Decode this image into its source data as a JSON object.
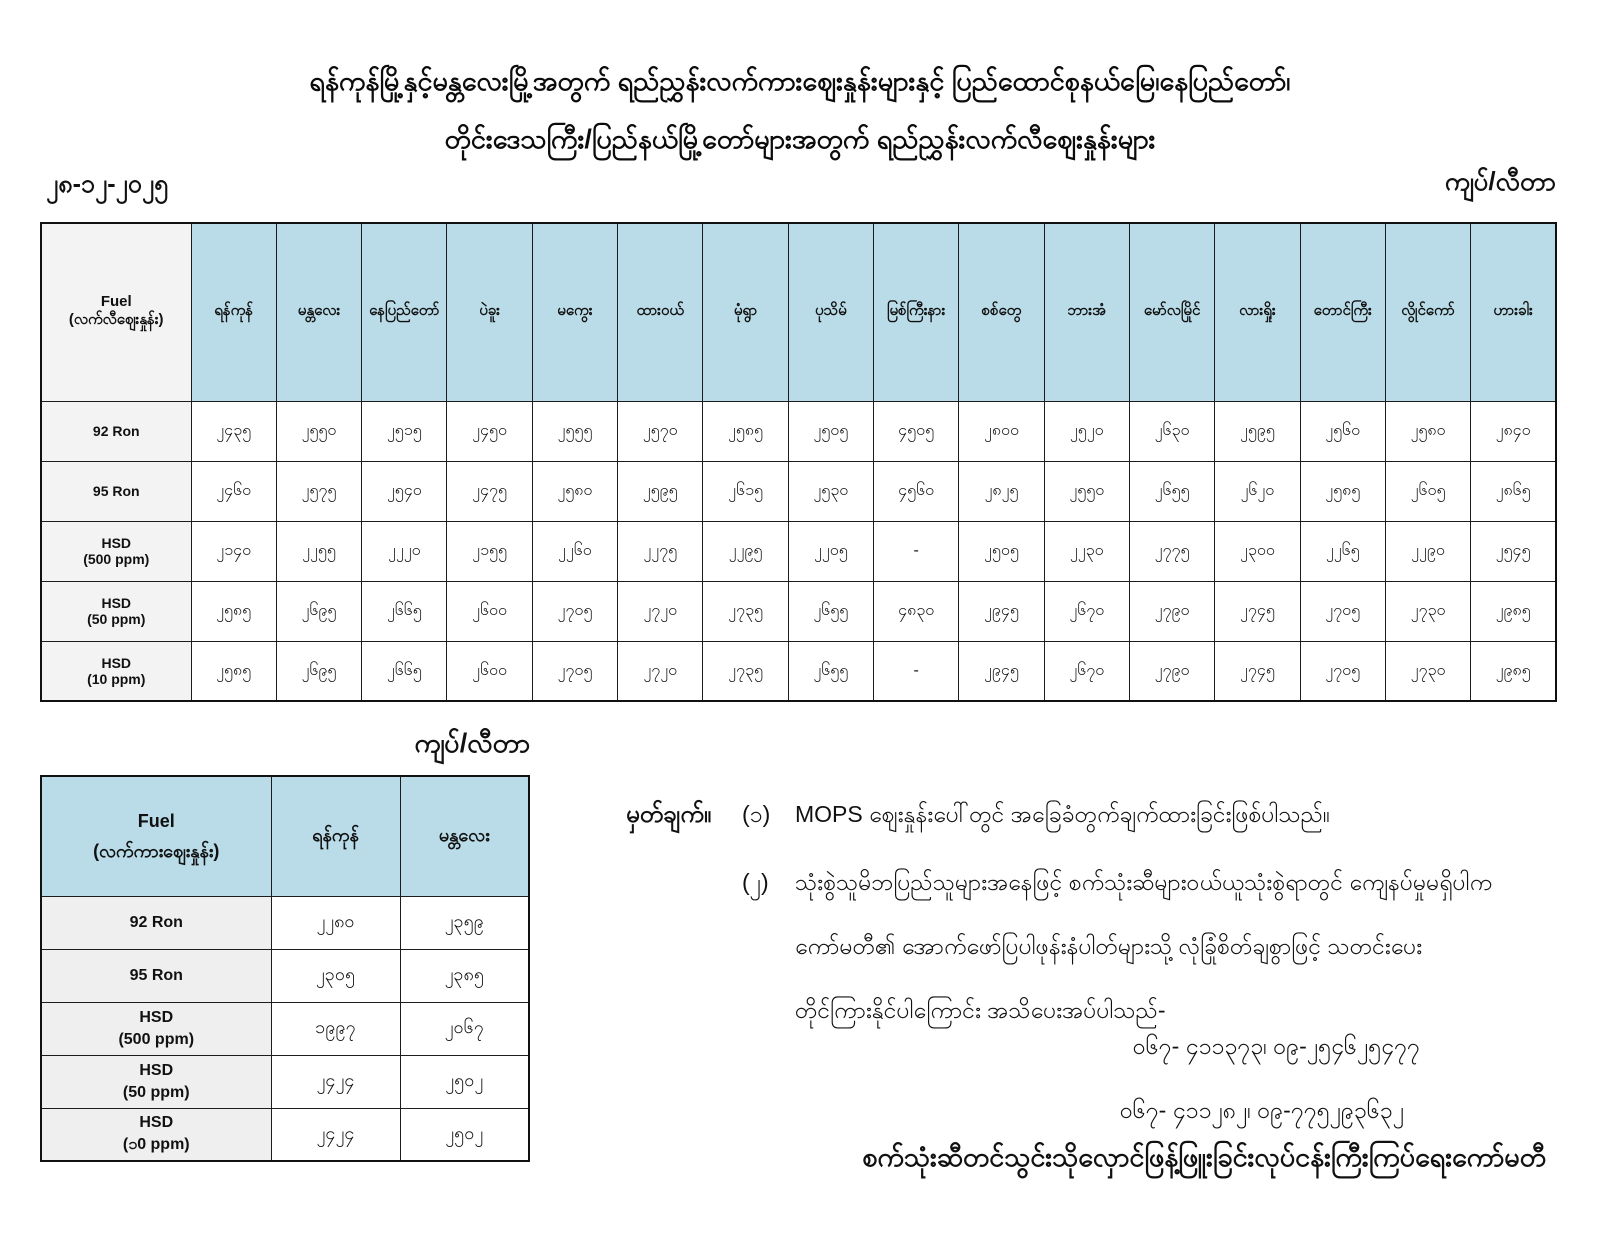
{
  "title": {
    "line1": "ရန်ကုန်မြို့နှင့်မန္တလေးမြို့အတွက် ရည်ညွှန်းလက်ကားဈေးနှုန်းများနှင့် ပြည်ထောင်စုနယ်မြေ၊နေပြည်တော်၊",
    "line2": "တိုင်းဒေသကြီး/ပြည်နယ်မြို့တော်များအတွက် ရည်ညွှန်းလက်လီဈေးနှုန်းများ"
  },
  "date": "၂၈-၁၂-၂၀၂၅",
  "unit_label": "ကျပ်/လီတာ",
  "colors": {
    "header_blue": "#b9dce8",
    "label_gray": "#f3f3f3",
    "border": "#1c1c1c"
  },
  "main_table": {
    "fuel_header": {
      "line1": "Fuel",
      "line2": "(လက်လီဈေးနှုန်း)"
    },
    "cities": [
      "ရန်ကုန်",
      "မန္တလေး",
      "နေပြည်တော်",
      "ပဲခူး",
      "မကွေး",
      "ထားဝယ်",
      "မုံရွာ",
      "ပုသိမ်",
      "မြစ်ကြီးနား",
      "စစ်တွေ",
      "ဘားအံ",
      "မော်လမြိုင်",
      "လားရှိုး",
      "တောင်ကြီး",
      "လွိုင်ကော်",
      "ဟားခါး"
    ],
    "rows": [
      {
        "label": "92 Ron",
        "label2": "",
        "values": [
          "၂၄၃၅",
          "၂၅၅၀",
          "၂၅၁၅",
          "၂၄၅၀",
          "၂၅၅၅",
          "၂၅၇၀",
          "၂၅၈၅",
          "၂၅၀၅",
          "၄၅၀၅",
          "၂၈၀၀",
          "၂၅၂၀",
          "၂၆၃၀",
          "၂၅၉၅",
          "၂၅၆၀",
          "၂၅၈၀",
          "၂၈၄၀"
        ]
      },
      {
        "label": "95 Ron",
        "label2": "",
        "values": [
          "၂၄၆၀",
          "၂၅၇၅",
          "၂၅၄၀",
          "၂၄၇၅",
          "၂၅၈၀",
          "၂၅၉၅",
          "၂၆၁၅",
          "၂၅၃၀",
          "၄၅၆၀",
          "၂၈၂၅",
          "၂၅၅၀",
          "၂၆၅၅",
          "၂၆၂၀",
          "၂၅၈၅",
          "၂၆၀၅",
          "၂၈၆၅"
        ]
      },
      {
        "label": "HSD",
        "label2": "(500 ppm)",
        "values": [
          "၂၁၄၀",
          "၂၂၅၅",
          "၂၂၂၀",
          "၂၁၅၅",
          "၂၂၆၀",
          "၂၂၇၅",
          "၂၂၉၅",
          "၂၂၀၅",
          "-",
          "၂၅၀၅",
          "၂၂၃၀",
          "၂၇၇၅",
          "၂၃၀၀",
          "၂၂၆၅",
          "၂၂၉၀",
          "၂၅၄၅"
        ]
      },
      {
        "label": "HSD",
        "label2": "(50 ppm)",
        "values": [
          "၂၅၈၅",
          "၂၆၉၅",
          "၂၆၆၅",
          "၂၆၀၀",
          "၂၇၀၅",
          "၂၇၂၀",
          "၂၇၃၅",
          "၂၆၅၅",
          "၄၈၃၀",
          "၂၉၄၅",
          "၂၆၇၀",
          "၂၇၉၀",
          "၂၇၄၅",
          "၂၇၀၅",
          "၂၇၃၀",
          "၂၉၈၅"
        ]
      },
      {
        "label": "HSD",
        "label2": "(10 ppm)",
        "values": [
          "၂၅၈၅",
          "၂၆၉၅",
          "၂၆၆၅",
          "၂၆၀၀",
          "၂၇၀၅",
          "၂၇၂၀",
          "၂၇၃၅",
          "၂၆၅၅",
          "-",
          "၂၉၄၅",
          "၂၆၇၀",
          "၂၇၉၀",
          "၂၇၄၅",
          "၂၇၀၅",
          "၂၇၃၀",
          "၂၉၈၅"
        ]
      }
    ]
  },
  "small_table": {
    "unit_label": "ကျပ်/လီတာ",
    "fuel_header": {
      "line1": "Fuel",
      "line2": "(လက်ကားဈေးနှုန်း)"
    },
    "cities": [
      "ရန်ကုန်",
      "မန္တလေး"
    ],
    "rows": [
      {
        "label": "92 Ron",
        "label2": "",
        "values": [
          "၂၂၈၀",
          "၂၃၅၉"
        ]
      },
      {
        "label": "95 Ron",
        "label2": "",
        "values": [
          "၂၃၀၅",
          "၂၃၈၅"
        ]
      },
      {
        "label": "HSD",
        "label2": "(500 ppm)",
        "values": [
          "၁၉၉၇",
          "၂၀၆၇"
        ]
      },
      {
        "label": "HSD",
        "label2": "(50 ppm)",
        "values": [
          "၂၄၂၄",
          "၂၅၀၂"
        ]
      },
      {
        "label": "HSD",
        "label2": "(၁0 ppm)",
        "values": [
          "၂၄၂၄",
          "၂၅၀၂"
        ]
      }
    ]
  },
  "notes": {
    "heading": "မှတ်ချက်။",
    "item1_num": "(၁)",
    "item1_text": "MOPS ဈေးနှုန်းပေါ်တွင် အခြေခံတွက်ချက်ထားခြင်းဖြစ်ပါသည်။",
    "item2_num": "(၂)",
    "item2_line1": "သုံးစွဲသူမိဘပြည်သူများအနေဖြင့် စက်သုံးဆီများဝယ်ယူသုံးစွဲရာတွင် ကျေနပ်မှုမရှိပါက",
    "item2_line2": "ကော်မတီ၏ အောက်ဖော်ပြပါဖုန်းနံပါတ်များသို့ လုံခြုံစိတ်ချစွာဖြင့် သတင်းပေး",
    "item2_line3": "တိုင်ကြားနိုင်ပါကြောင်း အသိပေးအပ်ပါသည်-",
    "phone1": "၀၆၇- ၄၁၁၃၇၃၊ ၀၉-၂၅၄၆၂၅၄၇၇",
    "phone2": "၀၆၇- ၄၁၁၂၈၂၊ ၀၉-၇၇၅၂၉၃၆၃၂",
    "footer": "စက်သုံးဆီတင်သွင်းသိုလှောင်ဖြန့်ဖြူးခြင်းလုပ်ငန်းကြီးကြပ်ရေးကော်မတီ"
  }
}
